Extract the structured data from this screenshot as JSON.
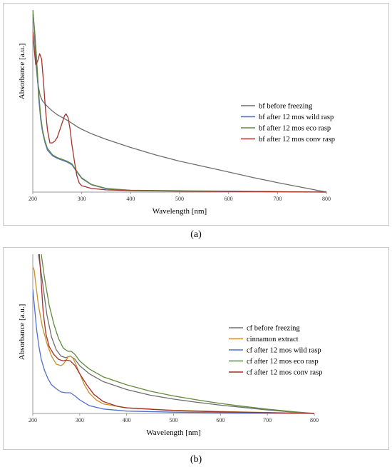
{
  "captions": {
    "a": "(a)",
    "b": "(b)"
  },
  "chart_data": [
    {
      "type": "line",
      "panel": "a",
      "xlabel": "Wavelength [nm]",
      "ylabel": "Absorbance [a.u.]",
      "xlim": [
        200,
        800
      ],
      "ylim": [
        0,
        1
      ],
      "xticks": [
        200,
        300,
        400,
        500,
        600,
        700,
        800
      ],
      "y_tick_labels_shown": false,
      "grid": false,
      "legend_position": "right",
      "series": [
        {
          "name": "bf before freezing",
          "color": "#6e6e6e",
          "points": [
            [
              200,
              1.0
            ],
            [
              203,
              0.88
            ],
            [
              206,
              0.72
            ],
            [
              210,
              0.6
            ],
            [
              215,
              0.53
            ],
            [
              220,
              0.5
            ],
            [
              230,
              0.47
            ],
            [
              240,
              0.445
            ],
            [
              250,
              0.425
            ],
            [
              260,
              0.41
            ],
            [
              270,
              0.395
            ],
            [
              280,
              0.378
            ],
            [
              290,
              0.36
            ],
            [
              300,
              0.345
            ],
            [
              320,
              0.32
            ],
            [
              350,
              0.29
            ],
            [
              400,
              0.245
            ],
            [
              450,
              0.205
            ],
            [
              500,
              0.17
            ],
            [
              550,
              0.14
            ],
            [
              600,
              0.11
            ],
            [
              650,
              0.08
            ],
            [
              700,
              0.052
            ],
            [
              750,
              0.026
            ],
            [
              800,
              0.0
            ]
          ]
        },
        {
          "name": "bf after 12 mos wild rasp",
          "color": "#4f6fcf",
          "points": [
            [
              200,
              1.0
            ],
            [
              204,
              0.88
            ],
            [
              208,
              0.72
            ],
            [
              212,
              0.52
            ],
            [
              216,
              0.4
            ],
            [
              220,
              0.33
            ],
            [
              225,
              0.27
            ],
            [
              230,
              0.23
            ],
            [
              240,
              0.2
            ],
            [
              250,
              0.185
            ],
            [
              260,
              0.175
            ],
            [
              270,
              0.165
            ],
            [
              280,
              0.15
            ],
            [
              290,
              0.11
            ],
            [
              300,
              0.075
            ],
            [
              320,
              0.04
            ],
            [
              350,
              0.018
            ],
            [
              400,
              0.009
            ],
            [
              500,
              0.006
            ],
            [
              600,
              0.004
            ],
            [
              700,
              0.002
            ],
            [
              800,
              0.0
            ]
          ]
        },
        {
          "name": "bf after 12 mos eco rasp",
          "color": "#5f8a3a",
          "points": [
            [
              200,
              1.0
            ],
            [
              204,
              0.88
            ],
            [
              208,
              0.72
            ],
            [
              212,
              0.55
            ],
            [
              216,
              0.42
            ],
            [
              220,
              0.34
            ],
            [
              225,
              0.28
            ],
            [
              230,
              0.24
            ],
            [
              240,
              0.205
            ],
            [
              250,
              0.19
            ],
            [
              260,
              0.18
            ],
            [
              270,
              0.17
            ],
            [
              280,
              0.155
            ],
            [
              290,
              0.115
            ],
            [
              300,
              0.078
            ],
            [
              320,
              0.042
            ],
            [
              350,
              0.02
            ],
            [
              400,
              0.01
            ],
            [
              500,
              0.007
            ],
            [
              600,
              0.005
            ],
            [
              700,
              0.002
            ],
            [
              800,
              0.0
            ]
          ]
        },
        {
          "name": "bf after 12 mos conv rasp",
          "color": "#a0322a",
          "points": [
            [
              200,
              0.88
            ],
            [
              203,
              0.78
            ],
            [
              206,
              0.7
            ],
            [
              210,
              0.72
            ],
            [
              214,
              0.76
            ],
            [
              218,
              0.73
            ],
            [
              222,
              0.6
            ],
            [
              226,
              0.45
            ],
            [
              230,
              0.34
            ],
            [
              235,
              0.27
            ],
            [
              240,
              0.27
            ],
            [
              245,
              0.28
            ],
            [
              250,
              0.3
            ],
            [
              255,
              0.34
            ],
            [
              260,
              0.38
            ],
            [
              265,
              0.42
            ],
            [
              268,
              0.43
            ],
            [
              272,
              0.41
            ],
            [
              276,
              0.35
            ],
            [
              280,
              0.26
            ],
            [
              285,
              0.17
            ],
            [
              290,
              0.09
            ],
            [
              295,
              0.05
            ],
            [
              300,
              0.035
            ],
            [
              320,
              0.02
            ],
            [
              350,
              0.012
            ],
            [
              400,
              0.008
            ],
            [
              500,
              0.005
            ],
            [
              600,
              0.004
            ],
            [
              700,
              0.002
            ],
            [
              800,
              0.0
            ]
          ]
        }
      ]
    },
    {
      "type": "line",
      "panel": "b",
      "xlabel": "Wavelength [nm]",
      "ylabel": "Absorbance [a.u.]",
      "xlim": [
        200,
        800
      ],
      "ylim": [
        0,
        1
      ],
      "xticks": [
        200,
        300,
        400,
        500,
        600,
        700,
        800
      ],
      "y_tick_labels_shown": false,
      "grid": false,
      "legend_position": "right",
      "series": [
        {
          "name": "cf before freezing",
          "color": "#6e6e6e",
          "points": [
            [
              212,
              1.0
            ],
            [
              220,
              0.84
            ],
            [
              230,
              0.62
            ],
            [
              240,
              0.48
            ],
            [
              250,
              0.4
            ],
            [
              260,
              0.36
            ],
            [
              270,
              0.35
            ],
            [
              280,
              0.36
            ],
            [
              290,
              0.34
            ],
            [
              300,
              0.3
            ],
            [
              320,
              0.25
            ],
            [
              350,
              0.2
            ],
            [
              400,
              0.15
            ],
            [
              450,
              0.115
            ],
            [
              500,
              0.09
            ],
            [
              550,
              0.07
            ],
            [
              600,
              0.052
            ],
            [
              650,
              0.037
            ],
            [
              700,
              0.022
            ],
            [
              750,
              0.01
            ],
            [
              800,
              0.0
            ]
          ]
        },
        {
          "name": "cinnamon extract",
          "color": "#c9902a",
          "points": [
            [
              200,
              0.92
            ],
            [
              203,
              0.9
            ],
            [
              206,
              0.82
            ],
            [
              212,
              0.68
            ],
            [
              220,
              0.55
            ],
            [
              230,
              0.44
            ],
            [
              240,
              0.36
            ],
            [
              250,
              0.31
            ],
            [
              260,
              0.3
            ],
            [
              265,
              0.31
            ],
            [
              270,
              0.33
            ],
            [
              275,
              0.355
            ],
            [
              280,
              0.36
            ],
            [
              285,
              0.35
            ],
            [
              290,
              0.32
            ],
            [
              300,
              0.25
            ],
            [
              310,
              0.18
            ],
            [
              320,
              0.13
            ],
            [
              335,
              0.085
            ],
            [
              350,
              0.06
            ],
            [
              400,
              0.035
            ],
            [
              500,
              0.02
            ],
            [
              600,
              0.012
            ],
            [
              700,
              0.006
            ],
            [
              800,
              0.0
            ]
          ]
        },
        {
          "name": "cf after 12 mos wild rasp",
          "color": "#4f6fcf",
          "points": [
            [
              200,
              0.78
            ],
            [
              204,
              0.66
            ],
            [
              208,
              0.53
            ],
            [
              213,
              0.42
            ],
            [
              218,
              0.34
            ],
            [
              225,
              0.27
            ],
            [
              232,
              0.22
            ],
            [
              240,
              0.18
            ],
            [
              250,
              0.155
            ],
            [
              260,
              0.135
            ],
            [
              270,
              0.13
            ],
            [
              280,
              0.13
            ],
            [
              290,
              0.11
            ],
            [
              300,
              0.085
            ],
            [
              320,
              0.05
            ],
            [
              350,
              0.028
            ],
            [
              400,
              0.015
            ],
            [
              500,
              0.008
            ],
            [
              600,
              0.005
            ],
            [
              700,
              0.002
            ],
            [
              800,
              0.0
            ]
          ]
        },
        {
          "name": "cf after 12 mos eco rasp",
          "color": "#5f8a3a",
          "points": [
            [
              218,
              1.0
            ],
            [
              225,
              0.85
            ],
            [
              235,
              0.68
            ],
            [
              245,
              0.56
            ],
            [
              255,
              0.47
            ],
            [
              265,
              0.41
            ],
            [
              275,
              0.39
            ],
            [
              282,
              0.39
            ],
            [
              290,
              0.37
            ],
            [
              300,
              0.33
            ],
            [
              320,
              0.28
            ],
            [
              350,
              0.23
            ],
            [
              400,
              0.18
            ],
            [
              450,
              0.14
            ],
            [
              500,
              0.11
            ],
            [
              550,
              0.085
            ],
            [
              600,
              0.063
            ],
            [
              650,
              0.044
            ],
            [
              700,
              0.027
            ],
            [
              750,
              0.012
            ],
            [
              800,
              0.0
            ]
          ]
        },
        {
          "name": "cf after 12 mos conv rasp",
          "color": "#a0322a",
          "points": [
            [
              214,
              1.0
            ],
            [
              218,
              0.82
            ],
            [
              222,
              0.64
            ],
            [
              228,
              0.5
            ],
            [
              235,
              0.42
            ],
            [
              245,
              0.37
            ],
            [
              255,
              0.34
            ],
            [
              265,
              0.33
            ],
            [
              272,
              0.335
            ],
            [
              280,
              0.33
            ],
            [
              290,
              0.3
            ],
            [
              300,
              0.25
            ],
            [
              315,
              0.18
            ],
            [
              330,
              0.12
            ],
            [
              350,
              0.075
            ],
            [
              380,
              0.045
            ],
            [
              400,
              0.035
            ],
            [
              500,
              0.018
            ],
            [
              600,
              0.01
            ],
            [
              700,
              0.005
            ],
            [
              800,
              0.0
            ]
          ]
        }
      ]
    }
  ]
}
